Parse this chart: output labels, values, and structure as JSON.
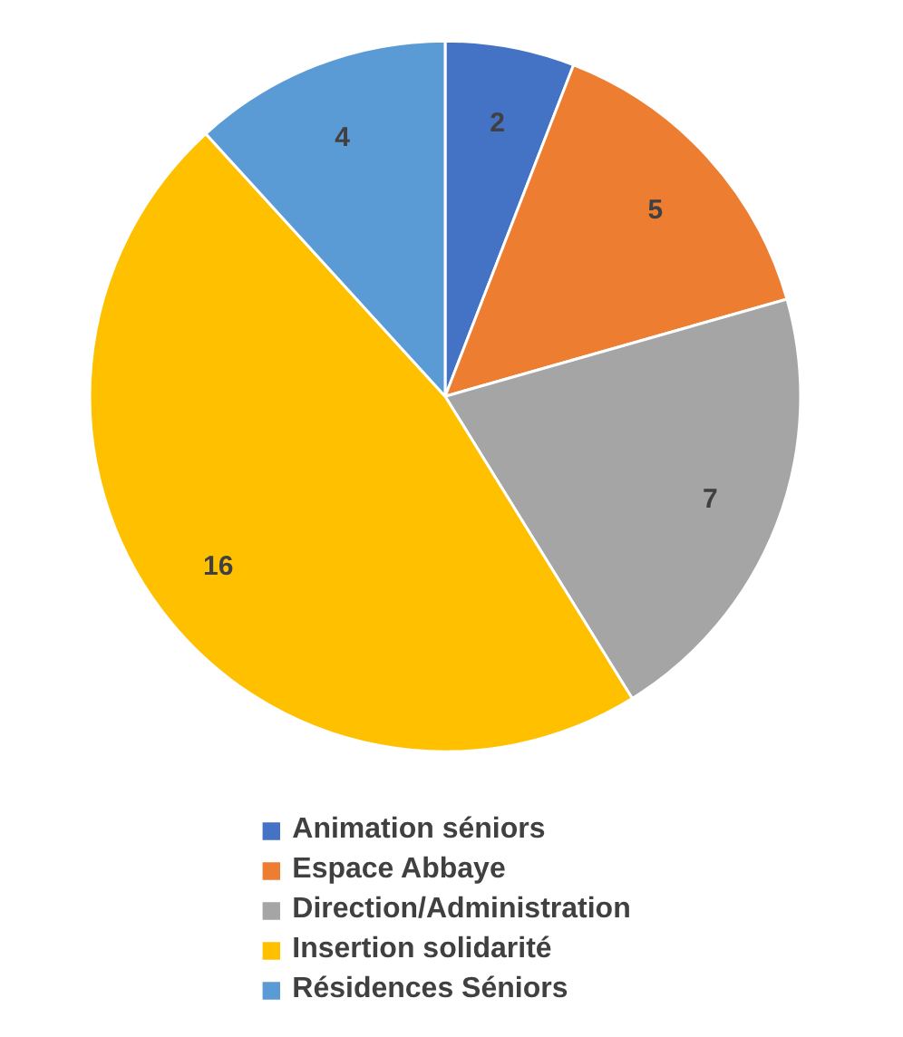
{
  "chart_data": {
    "type": "pie",
    "categories": [
      "Animation séniors",
      "Espace Abbaye",
      "Direction/Administration",
      "Insertion solidarité",
      "Résidences Séniors"
    ],
    "values": [
      2,
      5,
      7,
      16,
      4
    ],
    "colors": [
      "#4472c4",
      "#ed7d31",
      "#a5a5a5",
      "#ffc000",
      "#5b9bd5"
    ],
    "data_labels": true,
    "legend": "bottom"
  }
}
